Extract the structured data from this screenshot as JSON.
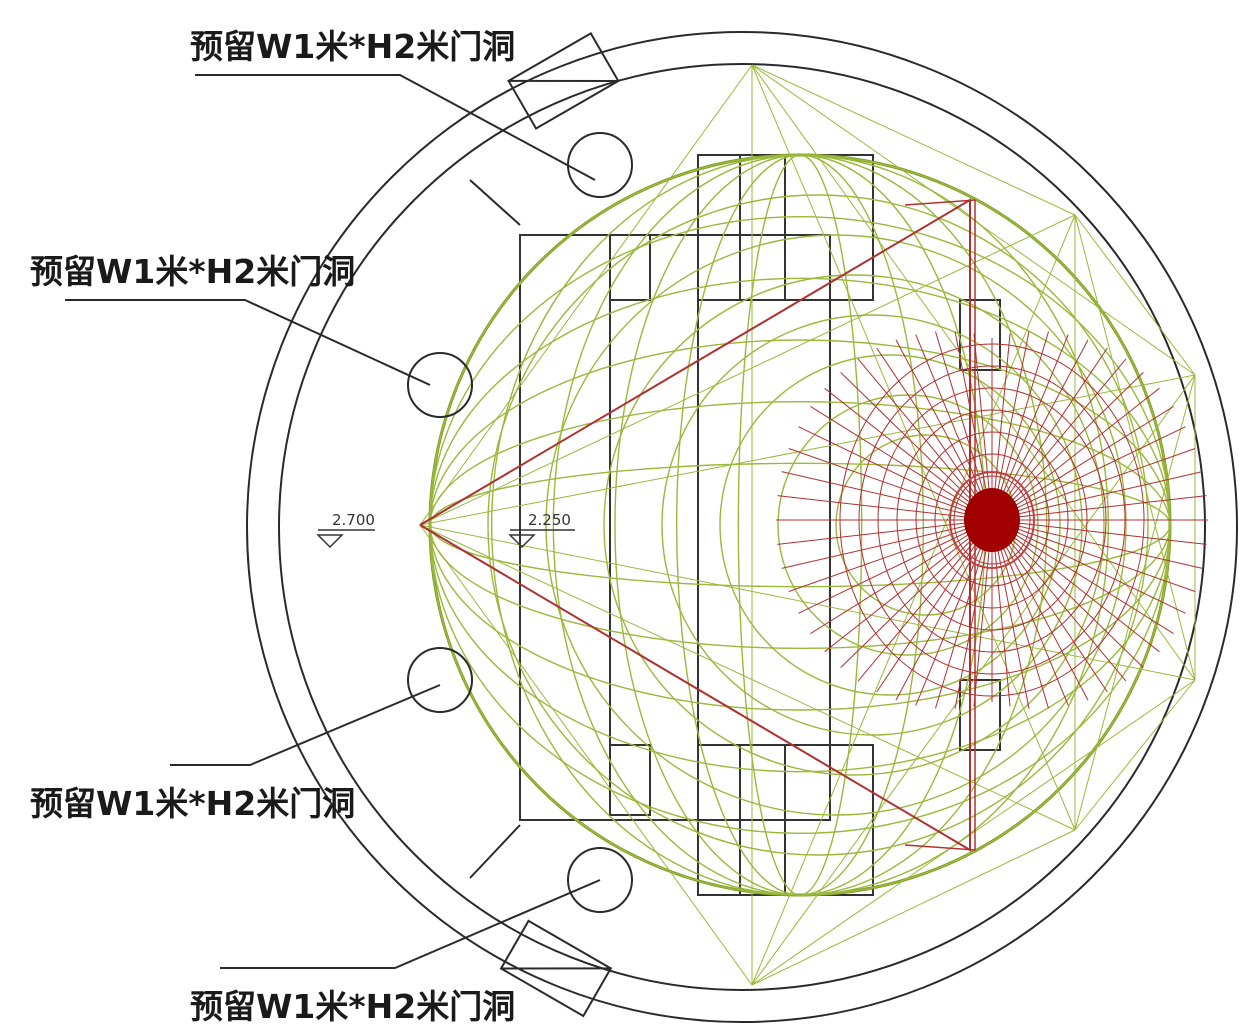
{
  "callouts": [
    {
      "id": "door-top",
      "label": "预留W1米*H2米门洞"
    },
    {
      "id": "door-upper-left",
      "label": "预留W1米*H2米门洞"
    },
    {
      "id": "door-lower-left",
      "label": "预留W1米*H2米门洞"
    },
    {
      "id": "door-bottom",
      "label": "预留W1米*H2米门洞"
    }
  ],
  "elevations": [
    {
      "id": "elev-outer",
      "label": "2.700"
    },
    {
      "id": "elev-inner",
      "label": "2.250"
    }
  ],
  "colors": {
    "mesh_green": "#9ab83a",
    "mesh_dark_green": "#7a9a20",
    "radial_red": "#b03030",
    "focus_red": "#a00000",
    "outline": "#2a2a2a",
    "text": "#1a1a1a"
  }
}
